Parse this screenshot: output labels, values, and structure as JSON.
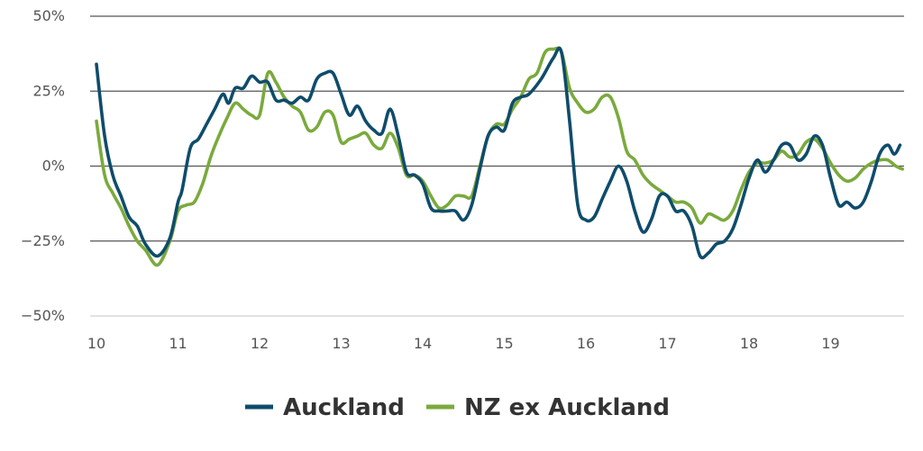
{
  "chart_data": {
    "type": "line",
    "title": "",
    "xlabel": "",
    "ylabel": "",
    "xlim": [
      10,
      19.9
    ],
    "ylim": [
      -50,
      50
    ],
    "y_ticks": [
      50,
      25,
      0,
      -25,
      -50
    ],
    "y_tick_labels": [
      "50%",
      "25%",
      "0%",
      "−25%",
      "−50%"
    ],
    "x_ticks": [
      10,
      11,
      12,
      13,
      14,
      15,
      16,
      17,
      18,
      19
    ],
    "x_tick_labels": [
      "10",
      "11",
      "12",
      "13",
      "14",
      "15",
      "16",
      "17",
      "18",
      "19"
    ],
    "grid": "horizontal",
    "legend_position": "bottom",
    "series": [
      {
        "name": "Auckland",
        "color": "#0f4c6b",
        "points": [
          [
            10.0,
            34
          ],
          [
            10.1,
            10
          ],
          [
            10.2,
            -3
          ],
          [
            10.3,
            -10
          ],
          [
            10.4,
            -17
          ],
          [
            10.5,
            -20
          ],
          [
            10.6,
            -26
          ],
          [
            10.75,
            -30
          ],
          [
            10.9,
            -24
          ],
          [
            11.0,
            -12
          ],
          [
            11.05,
            -8
          ],
          [
            11.15,
            6
          ],
          [
            11.25,
            9
          ],
          [
            11.35,
            14
          ],
          [
            11.45,
            19
          ],
          [
            11.55,
            24
          ],
          [
            11.62,
            21
          ],
          [
            11.7,
            26
          ],
          [
            11.8,
            26
          ],
          [
            11.9,
            30
          ],
          [
            12.0,
            28
          ],
          [
            12.1,
            28
          ],
          [
            12.2,
            22
          ],
          [
            12.3,
            22
          ],
          [
            12.4,
            21
          ],
          [
            12.5,
            23
          ],
          [
            12.6,
            22
          ],
          [
            12.7,
            29
          ],
          [
            12.8,
            31
          ],
          [
            12.9,
            31
          ],
          [
            13.0,
            24
          ],
          [
            13.1,
            17
          ],
          [
            13.2,
            20
          ],
          [
            13.3,
            15
          ],
          [
            13.4,
            12
          ],
          [
            13.5,
            11
          ],
          [
            13.6,
            19
          ],
          [
            13.7,
            10
          ],
          [
            13.8,
            -2
          ],
          [
            13.9,
            -3
          ],
          [
            14.0,
            -6
          ],
          [
            14.1,
            -14
          ],
          [
            14.2,
            -15
          ],
          [
            14.3,
            -15
          ],
          [
            14.4,
            -15
          ],
          [
            14.5,
            -18
          ],
          [
            14.6,
            -13
          ],
          [
            14.7,
            -1
          ],
          [
            14.8,
            10
          ],
          [
            14.9,
            13
          ],
          [
            15.0,
            12
          ],
          [
            15.1,
            21
          ],
          [
            15.2,
            23
          ],
          [
            15.3,
            24
          ],
          [
            15.45,
            29
          ],
          [
            15.6,
            36
          ],
          [
            15.7,
            38
          ],
          [
            15.8,
            15
          ],
          [
            15.9,
            -13
          ],
          [
            16.0,
            -18
          ],
          [
            16.1,
            -17
          ],
          [
            16.2,
            -11
          ],
          [
            16.3,
            -5
          ],
          [
            16.4,
            0
          ],
          [
            16.5,
            -5
          ],
          [
            16.6,
            -15
          ],
          [
            16.7,
            -22
          ],
          [
            16.8,
            -18
          ],
          [
            16.9,
            -10
          ],
          [
            17.0,
            -10
          ],
          [
            17.1,
            -15
          ],
          [
            17.2,
            -15
          ],
          [
            17.3,
            -20
          ],
          [
            17.4,
            -30
          ],
          [
            17.5,
            -29
          ],
          [
            17.6,
            -26
          ],
          [
            17.7,
            -25
          ],
          [
            17.8,
            -21
          ],
          [
            17.9,
            -13
          ],
          [
            18.0,
            -4
          ],
          [
            18.1,
            2
          ],
          [
            18.2,
            -2
          ],
          [
            18.3,
            2
          ],
          [
            18.4,
            7
          ],
          [
            18.5,
            7
          ],
          [
            18.6,
            2
          ],
          [
            18.7,
            4
          ],
          [
            18.8,
            10
          ],
          [
            18.9,
            7
          ],
          [
            19.0,
            -4
          ],
          [
            19.1,
            -13
          ],
          [
            19.2,
            -12
          ],
          [
            19.3,
            -14
          ],
          [
            19.4,
            -12
          ],
          [
            19.5,
            -5
          ],
          [
            19.6,
            4
          ],
          [
            19.7,
            7
          ],
          [
            19.78,
            4
          ],
          [
            19.85,
            7
          ]
        ]
      },
      {
        "name": "NZ ex Auckland",
        "color": "#7aaa3c",
        "points": [
          [
            10.0,
            15
          ],
          [
            10.1,
            -3
          ],
          [
            10.2,
            -9
          ],
          [
            10.3,
            -14
          ],
          [
            10.4,
            -20
          ],
          [
            10.5,
            -25
          ],
          [
            10.6,
            -28
          ],
          [
            10.75,
            -33
          ],
          [
            10.9,
            -25
          ],
          [
            11.0,
            -15
          ],
          [
            11.1,
            -13
          ],
          [
            11.2,
            -12
          ],
          [
            11.3,
            -6
          ],
          [
            11.4,
            3
          ],
          [
            11.5,
            10
          ],
          [
            11.6,
            16
          ],
          [
            11.7,
            21
          ],
          [
            11.8,
            19
          ],
          [
            11.9,
            17
          ],
          [
            12.0,
            17
          ],
          [
            12.1,
            31
          ],
          [
            12.2,
            28
          ],
          [
            12.3,
            23
          ],
          [
            12.4,
            20
          ],
          [
            12.5,
            18
          ],
          [
            12.6,
            12
          ],
          [
            12.7,
            13
          ],
          [
            12.8,
            18
          ],
          [
            12.9,
            17
          ],
          [
            13.0,
            8
          ],
          [
            13.1,
            9
          ],
          [
            13.2,
            10
          ],
          [
            13.3,
            11
          ],
          [
            13.4,
            7
          ],
          [
            13.5,
            6
          ],
          [
            13.6,
            11
          ],
          [
            13.7,
            6
          ],
          [
            13.8,
            -3
          ],
          [
            13.9,
            -3
          ],
          [
            14.0,
            -5
          ],
          [
            14.1,
            -10
          ],
          [
            14.2,
            -14
          ],
          [
            14.3,
            -13
          ],
          [
            14.4,
            -10
          ],
          [
            14.5,
            -10
          ],
          [
            14.6,
            -10
          ],
          [
            14.7,
            0
          ],
          [
            14.8,
            10
          ],
          [
            14.9,
            14
          ],
          [
            15.0,
            14
          ],
          [
            15.1,
            19
          ],
          [
            15.2,
            23
          ],
          [
            15.3,
            29
          ],
          [
            15.4,
            31
          ],
          [
            15.5,
            38
          ],
          [
            15.6,
            39
          ],
          [
            15.7,
            38
          ],
          [
            15.8,
            26
          ],
          [
            15.9,
            21
          ],
          [
            16.0,
            18
          ],
          [
            16.1,
            19
          ],
          [
            16.2,
            23
          ],
          [
            16.3,
            23
          ],
          [
            16.4,
            16
          ],
          [
            16.5,
            5
          ],
          [
            16.6,
            2
          ],
          [
            16.7,
            -3
          ],
          [
            16.8,
            -6
          ],
          [
            16.9,
            -8
          ],
          [
            17.0,
            -10
          ],
          [
            17.1,
            -12
          ],
          [
            17.2,
            -12
          ],
          [
            17.3,
            -14
          ],
          [
            17.4,
            -19
          ],
          [
            17.5,
            -16
          ],
          [
            17.6,
            -17
          ],
          [
            17.7,
            -18
          ],
          [
            17.8,
            -15
          ],
          [
            17.9,
            -8
          ],
          [
            18.0,
            -2
          ],
          [
            18.1,
            1
          ],
          [
            18.2,
            1
          ],
          [
            18.3,
            2
          ],
          [
            18.4,
            5
          ],
          [
            18.5,
            3
          ],
          [
            18.6,
            4
          ],
          [
            18.7,
            8
          ],
          [
            18.8,
            9
          ],
          [
            18.9,
            6
          ],
          [
            19.0,
            1
          ],
          [
            19.1,
            -3
          ],
          [
            19.2,
            -5
          ],
          [
            19.3,
            -4
          ],
          [
            19.4,
            -1
          ],
          [
            19.5,
            1
          ],
          [
            19.6,
            2
          ],
          [
            19.7,
            2
          ],
          [
            19.8,
            0
          ],
          [
            19.88,
            -1
          ]
        ]
      }
    ]
  }
}
